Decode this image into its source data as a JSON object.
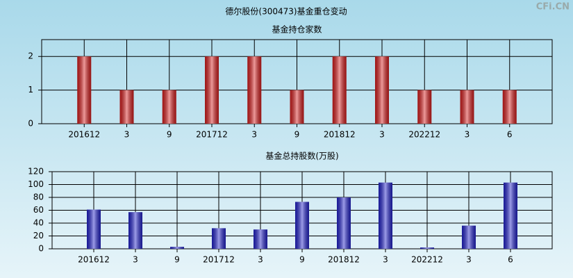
{
  "title": "德尔股份(300473)基金重仓变动",
  "watermark": "CFi.CN",
  "chart_data": [
    {
      "type": "bar",
      "title": "基金持仓家数",
      "categories": [
        "201612",
        "3",
        "9",
        "201712",
        "3",
        "9",
        "201812",
        "3",
        "202212",
        "3",
        "6"
      ],
      "values": [
        2,
        1,
        1,
        2,
        2,
        1,
        2,
        2,
        1,
        1,
        1
      ],
      "color": "#d81e1e",
      "ylim": [
        0,
        2.5
      ],
      "yticks": [
        0,
        1,
        2
      ],
      "grid": true
    },
    {
      "type": "bar",
      "title": "基金总持股数(万股)",
      "categories": [
        "201612",
        "3",
        "9",
        "201712",
        "3",
        "9",
        "201812",
        "3",
        "202212",
        "3",
        "6"
      ],
      "values": [
        61,
        57,
        3,
        32,
        30,
        73,
        80,
        103,
        2,
        36,
        103
      ],
      "color": "#2222cc",
      "ylim": [
        0,
        120
      ],
      "yticks": [
        0,
        20,
        40,
        60,
        80,
        100,
        120
      ],
      "grid": true
    }
  ]
}
